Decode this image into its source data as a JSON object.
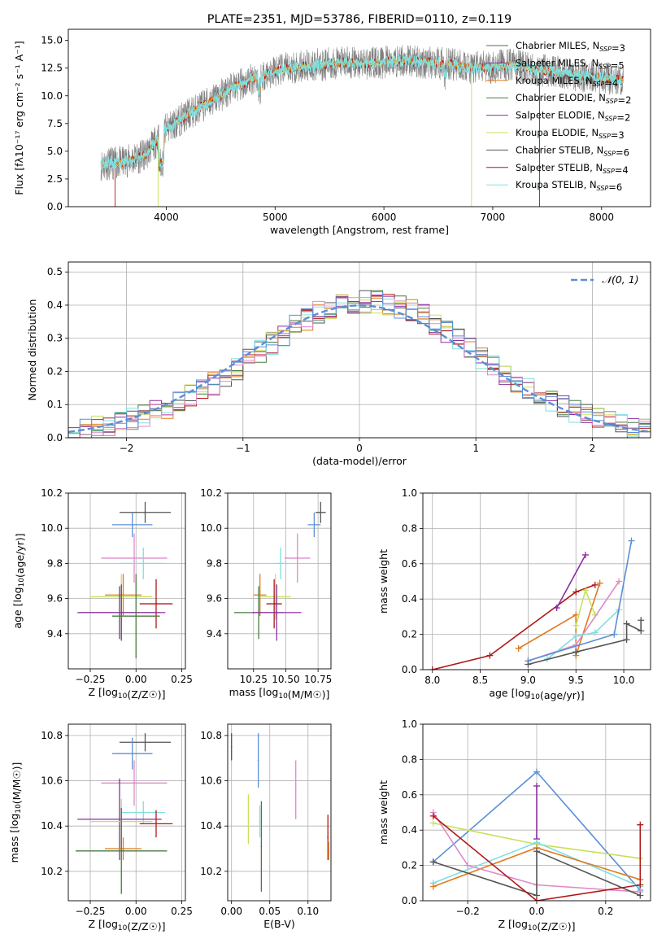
{
  "chart_data": [
    {
      "id": "spectrum",
      "type": "line",
      "title": "PLATE=2351, MJD=53786, FIBERID=0110, z=0.119",
      "xlabel": "wavelength [Angstrom, rest frame]",
      "ylabel": "Flux [fλ10⁻¹⁷ erg cm⁻² s⁻¹ A⁻¹]",
      "xlim": [
        3100,
        8450
      ],
      "ylim": [
        0,
        16
      ],
      "xticks": [
        "4000",
        "5000",
        "6000",
        "7000",
        "8000"
      ],
      "yticks": [
        "0.0",
        "2.5",
        "5.0",
        "7.5",
        "10.0",
        "12.5",
        "15.0"
      ],
      "legend_position": "top-right",
      "series": [
        {
          "name": "Chabrier MILES, NSSP=3",
          "color": "#4a7a40"
        },
        {
          "name": "Salpeter MILES, NSSP=5",
          "color": "#8b2fa0"
        },
        {
          "name": "Kroupa MILES, NSSP=4",
          "color": "#e07a1e"
        },
        {
          "name": "Chabrier ELODIE, NSSP=2",
          "color": "#4a7a40"
        },
        {
          "name": "Salpeter ELODIE, NSSP=2",
          "color": "#8b2fa0"
        },
        {
          "name": "Kroupa ELODIE, NSSP=3",
          "color": "#c8e05a"
        },
        {
          "name": "Chabrier STELIB, NSSP=6",
          "color": "#555555"
        },
        {
          "name": "Salpeter STELIB, NSSP=4",
          "color": "#b01818"
        },
        {
          "name": "Kroupa STELIB, NSSP=6",
          "color": "#7fdfe0"
        }
      ],
      "continuum": {
        "x": [
          3400,
          3600,
          3800,
          4000,
          4200,
          4400,
          4600,
          4800,
          5000,
          5200,
          5400,
          5600,
          5800,
          6000,
          6200,
          6400,
          6600,
          6800,
          7000,
          7200,
          7400,
          7600,
          7800,
          8000,
          8200
        ],
        "y": [
          3.8,
          4.0,
          4.6,
          7.0,
          8.3,
          9.5,
          10.6,
          11.6,
          12.2,
          12.6,
          12.8,
          13.0,
          12.9,
          13.0,
          13.2,
          13.0,
          12.9,
          12.5,
          12.6,
          12.8,
          12.3,
          12.2,
          11.8,
          11.6,
          11.4
        ]
      }
    },
    {
      "id": "residuals",
      "type": "bar",
      "xlabel": "(data-model)/error",
      "ylabel": "Normed distribution",
      "xlim": [
        -2.5,
        2.5
      ],
      "ylim": [
        0,
        0.53
      ],
      "xticks": [
        "−2",
        "−1",
        "0",
        "1",
        "2"
      ],
      "yticks": [
        "0.0",
        "0.1",
        "0.2",
        "0.3",
        "0.4",
        "0.5"
      ],
      "legend": "𝒩(0, 1)",
      "legend_position": "top-right",
      "reference_curve": {
        "name": "𝒩(0, 1)",
        "type": "gaussian",
        "mean": 0,
        "sigma": 1,
        "color": "#5b8fd6"
      },
      "bin_width": 0.1,
      "envelope": {
        "x": [
          -2.5,
          -2.2,
          -1.9,
          -1.6,
          -1.3,
          -1.0,
          -0.7,
          -0.4,
          -0.1,
          0.2,
          0.5,
          0.8,
          1.1,
          1.4,
          1.7,
          2.0,
          2.3,
          2.5
        ],
        "y": [
          0.02,
          0.035,
          0.06,
          0.1,
          0.15,
          0.22,
          0.3,
          0.37,
          0.41,
          0.41,
          0.38,
          0.31,
          0.23,
          0.16,
          0.1,
          0.06,
          0.035,
          0.025
        ]
      },
      "series_colors": [
        "#4a7a40",
        "#8b2fa0",
        "#e07a1e",
        "#c8e05a",
        "#555555",
        "#b01818",
        "#7fdfe0",
        "#e08ac8",
        "#5b8fd6"
      ]
    },
    {
      "id": "age-vs-Z",
      "type": "scatter",
      "xlabel": "Z [log10(Z/Z☉)]",
      "ylabel": "age  [log10(age/yr)]",
      "xlim": [
        -0.37,
        0.27
      ],
      "ylim": [
        9.2,
        10.2
      ],
      "xticks": [
        "−0.25",
        "0.00",
        "0.25"
      ],
      "yticks": [
        "9.4",
        "9.6",
        "9.8",
        "10.0",
        "10.2"
      ],
      "points": [
        {
          "x": 0.05,
          "y": 10.09,
          "xerr": 0.14,
          "yerr": 0.06,
          "color": "#555555"
        },
        {
          "x": -0.02,
          "y": 10.02,
          "xerr": 0.11,
          "yerr": 0.07,
          "color": "#5b8fd6"
        },
        {
          "x": -0.01,
          "y": 9.83,
          "xerr": 0.18,
          "yerr": 0.14,
          "color": "#e08ac8"
        },
        {
          "x": 0.04,
          "y": 9.8,
          "xerr": 0.12,
          "yerr": 0.09,
          "color": "#7fdfe0"
        },
        {
          "x": -0.07,
          "y": 9.62,
          "xerr": 0.1,
          "yerr": 0.12,
          "color": "#e07a1e"
        },
        {
          "x": -0.08,
          "y": 9.61,
          "xerr": 0.17,
          "yerr": 0.13,
          "color": "#c8e05a"
        },
        {
          "x": 0.11,
          "y": 9.57,
          "xerr": 0.09,
          "yerr": 0.14,
          "color": "#b01818"
        },
        {
          "x": -0.09,
          "y": 9.52,
          "xerr": 0.22,
          "yerr": 0.15,
          "color": "#555555"
        },
        {
          "x": -0.08,
          "y": 9.52,
          "xerr": 0.24,
          "yerr": 0.16,
          "color": "#8b2fa0"
        },
        {
          "x": 0.0,
          "y": 9.5,
          "xerr": 0.13,
          "yerr": 0.24,
          "color": "#4a7a40"
        }
      ]
    },
    {
      "id": "age-vs-mass",
      "type": "scatter",
      "xlabel": "mass [log10(M/M☉)]",
      "ylabel": "",
      "xlim": [
        10.05,
        10.85
      ],
      "ylim": [
        9.2,
        10.2
      ],
      "xticks": [
        "10.25",
        "10.50",
        "10.75"
      ],
      "yticks": [
        "9.4",
        "9.6",
        "9.8",
        "10.0",
        "10.2"
      ],
      "points": [
        {
          "x": 10.77,
          "y": 10.09,
          "xerr": 0.04,
          "yerr": 0.06,
          "color": "#555555"
        },
        {
          "x": 10.72,
          "y": 10.02,
          "xerr": 0.05,
          "yerr": 0.07,
          "color": "#5b8fd6"
        },
        {
          "x": 10.59,
          "y": 9.83,
          "xerr": 0.1,
          "yerr": 0.14,
          "color": "#e08ac8"
        },
        {
          "x": 10.46,
          "y": 9.8,
          "xerr": 0.05,
          "yerr": 0.09,
          "color": "#7fdfe0"
        },
        {
          "x": 10.3,
          "y": 9.62,
          "xerr": 0.05,
          "yerr": 0.12,
          "color": "#e07a1e"
        },
        {
          "x": 10.42,
          "y": 9.61,
          "xerr": 0.12,
          "yerr": 0.13,
          "color": "#c8e05a"
        },
        {
          "x": 10.41,
          "y": 9.57,
          "xerr": 0.06,
          "yerr": 0.14,
          "color": "#b01818"
        },
        {
          "x": 10.29,
          "y": 9.52,
          "xerr": 0.19,
          "yerr": 0.15,
          "color": "#4a7a40"
        },
        {
          "x": 10.43,
          "y": 9.52,
          "xerr": 0.19,
          "yerr": 0.16,
          "color": "#8b2fa0"
        }
      ]
    },
    {
      "id": "weight-vs-age",
      "type": "line",
      "xlabel": "age  [log10(age/yr)]",
      "ylabel": "mass weight",
      "xlim": [
        7.9,
        10.28
      ],
      "ylim": [
        0,
        1
      ],
      "xticks": [
        "8.0",
        "8.5",
        "9.0",
        "9.5",
        "10.0"
      ],
      "yticks": [
        "0.0",
        "0.2",
        "0.4",
        "0.6",
        "0.8",
        "1.0"
      ],
      "series": [
        {
          "color": "#b01818",
          "points": [
            [
              8.0,
              0.0
            ],
            [
              8.6,
              0.08
            ],
            [
              9.5,
              0.44
            ],
            [
              9.7,
              0.48
            ]
          ]
        },
        {
          "color": "#8b2fa0",
          "points": [
            [
              9.3,
              0.35
            ],
            [
              9.6,
              0.65
            ]
          ]
        },
        {
          "color": "#e07a1e",
          "points": [
            [
              8.9,
              0.12
            ],
            [
              9.5,
              0.31
            ],
            [
              9.5,
              0.08
            ],
            [
              9.75,
              0.49
            ]
          ]
        },
        {
          "color": "#c8e05a",
          "points": [
            [
              9.5,
              0.25
            ],
            [
              9.6,
              0.45
            ],
            [
              9.7,
              0.31
            ]
          ]
        },
        {
          "color": "#e08ac8",
          "points": [
            [
              9.0,
              0.05
            ],
            [
              9.5,
              0.14
            ],
            [
              9.95,
              0.5
            ]
          ]
        },
        {
          "color": "#7fdfe0",
          "points": [
            [
              9.2,
              0.06
            ],
            [
              9.5,
              0.19
            ],
            [
              9.7,
              0.21
            ],
            [
              9.95,
              0.34
            ]
          ]
        },
        {
          "color": "#5b8fd6",
          "points": [
            [
              9.0,
              0.05
            ],
            [
              9.9,
              0.2
            ],
            [
              10.08,
              0.73
            ]
          ]
        },
        {
          "color": "#555555",
          "points": [
            [
              9.0,
              0.03
            ],
            [
              9.5,
              0.1
            ],
            [
              10.03,
              0.17
            ],
            [
              10.03,
              0.26
            ],
            [
              10.18,
              0.22
            ],
            [
              10.18,
              0.28
            ]
          ]
        }
      ]
    },
    {
      "id": "mass-vs-Z",
      "type": "scatter",
      "xlabel": "Z [log10(Z/Z☉)]",
      "ylabel": "mass [log10(M/M☉)]",
      "xlim": [
        -0.37,
        0.27
      ],
      "ylim": [
        10.07,
        10.85
      ],
      "xticks": [
        "−0.25",
        "0.00",
        "0.25"
      ],
      "yticks": [
        "10.2",
        "10.4",
        "10.6",
        "10.8"
      ],
      "points": [
        {
          "x": 0.05,
          "y": 10.77,
          "xerr": 0.14,
          "yerr": 0.04,
          "color": "#555555"
        },
        {
          "x": -0.02,
          "y": 10.72,
          "xerr": 0.11,
          "yerr": 0.07,
          "color": "#5b8fd6"
        },
        {
          "x": -0.01,
          "y": 10.59,
          "xerr": 0.18,
          "yerr": 0.1,
          "color": "#e08ac8"
        },
        {
          "x": 0.04,
          "y": 10.46,
          "xerr": 0.12,
          "yerr": 0.05,
          "color": "#7fdfe0"
        },
        {
          "x": -0.09,
          "y": 10.43,
          "xerr": 0.23,
          "yerr": 0.18,
          "color": "#8b2fa0"
        },
        {
          "x": -0.08,
          "y": 10.42,
          "xerr": 0.17,
          "yerr": 0.1,
          "color": "#c8e05a"
        },
        {
          "x": 0.11,
          "y": 10.41,
          "xerr": 0.09,
          "yerr": 0.06,
          "color": "#b01818"
        },
        {
          "x": -0.07,
          "y": 10.3,
          "xerr": 0.1,
          "yerr": 0.05,
          "color": "#e07a1e"
        },
        {
          "x": -0.08,
          "y": 10.29,
          "xerr": 0.25,
          "yerr": 0.19,
          "color": "#4a7a40"
        }
      ]
    },
    {
      "id": "mass-vs-ebv",
      "type": "scatter",
      "xlabel": "E(B-V)",
      "ylabel": "",
      "xlim": [
        -0.005,
        0.13
      ],
      "ylim": [
        10.07,
        10.85
      ],
      "xticks": [
        "0.00",
        "0.05",
        "0.10"
      ],
      "yticks": [
        "10.2",
        "10.4",
        "10.6",
        "10.8"
      ],
      "points": [
        {
          "x": 0.0,
          "y": 10.75,
          "yerr": 0.06,
          "color": "#555555"
        },
        {
          "x": 0.035,
          "y": 10.69,
          "yerr": 0.12,
          "color": "#5b8fd6"
        },
        {
          "x": 0.084,
          "y": 10.56,
          "yerr": 0.13,
          "color": "#e08ac8"
        },
        {
          "x": 0.037,
          "y": 10.42,
          "yerr": 0.07,
          "color": "#7fdfe0"
        },
        {
          "x": 0.022,
          "y": 10.43,
          "yerr": 0.11,
          "color": "#c8e05a"
        },
        {
          "x": 0.039,
          "y": 10.31,
          "yerr": 0.2,
          "color": "#4a7a40"
        },
        {
          "x": 0.126,
          "y": 10.35,
          "yerr": 0.1,
          "color": "#b01818"
        },
        {
          "x": 0.127,
          "y": 10.29,
          "yerr": 0.04,
          "color": "#e07a1e"
        }
      ]
    },
    {
      "id": "weight-vs-Z",
      "type": "line",
      "xlabel": "Z [log10(Z/Z☉)]",
      "ylabel": "mass weight",
      "xlim": [
        -0.33,
        0.33
      ],
      "ylim": [
        0,
        1
      ],
      "xticks": [
        "−0.2",
        "0.0",
        "0.2"
      ],
      "yticks": [
        "0.0",
        "0.2",
        "0.4",
        "0.6",
        "0.8",
        "1.0"
      ],
      "series": [
        {
          "color": "#5b8fd6",
          "points": [
            [
              -0.3,
              0.22
            ],
            [
              0.0,
              0.73
            ],
            [
              0.3,
              0.06
            ]
          ]
        },
        {
          "color": "#8b2fa0",
          "points": [
            [
              0.0,
              0.65
            ],
            [
              0.0,
              0.35
            ]
          ]
        },
        {
          "color": "#c8e05a",
          "points": [
            [
              -0.3,
              0.44
            ],
            [
              0.0,
              0.32
            ],
            [
              0.3,
              0.24
            ]
          ]
        },
        {
          "color": "#7fdfe0",
          "points": [
            [
              -0.3,
              0.1
            ],
            [
              0.0,
              0.33
            ],
            [
              0.3,
              0.08
            ]
          ]
        },
        {
          "color": "#e07a1e",
          "points": [
            [
              -0.3,
              0.08
            ],
            [
              0.0,
              0.3
            ],
            [
              0.3,
              0.12
            ]
          ]
        },
        {
          "color": "#e08ac8",
          "points": [
            [
              -0.3,
              0.5
            ],
            [
              -0.2,
              0.2
            ],
            [
              0.0,
              0.09
            ],
            [
              0.3,
              0.05
            ]
          ]
        },
        {
          "color": "#555555",
          "points": [
            [
              -0.3,
              0.22
            ],
            [
              0.0,
              0.03
            ],
            [
              0.0,
              0.28
            ],
            [
              0.3,
              0.03
            ]
          ]
        },
        {
          "color": "#b01818",
          "points": [
            [
              -0.3,
              0.48
            ],
            [
              0.0,
              0.0
            ],
            [
              0.3,
              0.09
            ],
            [
              0.3,
              0.43
            ]
          ]
        }
      ]
    }
  ]
}
